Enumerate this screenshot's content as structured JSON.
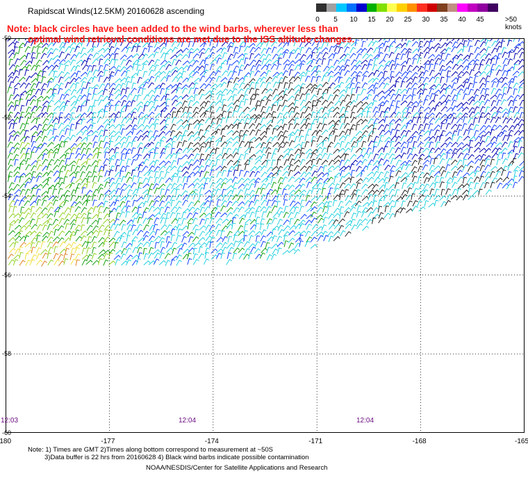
{
  "title": "Rapidscat Winds(12.5KM) 20160628 ascending",
  "note": {
    "line1": "Note: black circles have been added to the wind barbs, wherever less than",
    "line2": "optimal wind retrieval conditions are met due to the ISS altitude changes."
  },
  "legend": {
    "labels": [
      "0",
      "5",
      "10",
      "15",
      "20",
      "25",
      "30",
      "35",
      "40",
      "45",
      ">50 knots"
    ],
    "colors": [
      "#303030",
      "#a0a0a0",
      "#00c8ff",
      "#0070ff",
      "#0000d0",
      "#00b000",
      "#80e000",
      "#ffff50",
      "#ffd000",
      "#ff9000",
      "#ff3020",
      "#d00000",
      "#804020",
      "#c09080",
      "#ff00ff",
      "#c000c0",
      "#9000a0",
      "#400060"
    ],
    "knots_label": ">50 knots"
  },
  "axes": {
    "x_ticks": [
      "-180",
      "-177",
      "-174",
      "-171",
      "-168",
      "-165"
    ],
    "y_ticks": [
      "-50",
      "-52",
      "-54",
      "-56",
      "-58",
      "-60"
    ],
    "y_tick_labels_visible": [
      "-50",
      "-52",
      "-54",
      "-56",
      "-58",
      "-60"
    ]
  },
  "times": [
    "12:03",
    "12:04",
    "12:04"
  ],
  "footer": {
    "line1": "Note: 1) Times are GMT 2)Times along bottom correspond to measurement at ~50S",
    "line2": "3)Data buffer is 22 hrs from 20160628 4) Black wind barbs indicate possible contamination",
    "line3": "NOAA/NESDIS/Center for Satellite Applications and Research"
  },
  "map_style": {
    "grid": "dotted",
    "frame": "black",
    "wind_colors_by_speed": {
      "low": "#202020",
      "light_blue": "#20d0e0",
      "blue": "#1040ff",
      "dark_blue": "#0000b0",
      "green": "#10a010",
      "yellow_green": "#90d020",
      "yellow": "#f0e040",
      "orange": "#e08020"
    }
  }
}
